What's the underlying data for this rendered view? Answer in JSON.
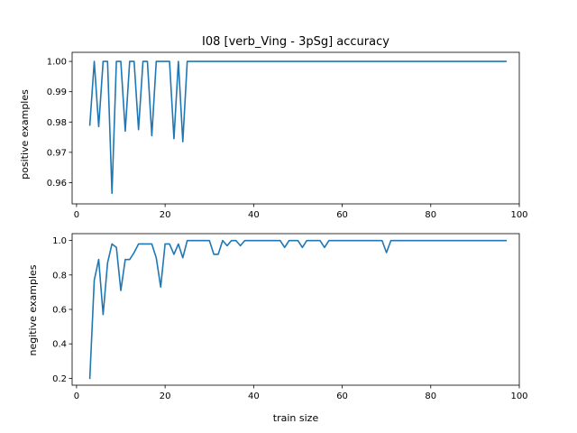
{
  "chart_data": [
    {
      "type": "line",
      "title": "I08 [verb_Ving - 3pSg] accuracy",
      "xlabel": "",
      "ylabel": "positive examples",
      "xlim": [
        -1,
        100
      ],
      "ylim": [
        0.953,
        1.003
      ],
      "xticks": [
        0,
        20,
        40,
        60,
        80,
        100
      ],
      "yticks": [
        0.96,
        0.97,
        0.98,
        0.99,
        1.0
      ],
      "ytick_labels": [
        "0.96",
        "0.97",
        "0.98",
        "0.99",
        "1.00"
      ],
      "grid": false,
      "color": "#1f77b4",
      "series": [
        {
          "x": [
            3,
            4,
            5,
            6,
            7,
            8,
            9,
            10,
            11,
            12,
            13,
            14,
            15,
            16,
            17,
            18,
            19,
            20,
            21,
            22,
            23,
            24,
            25,
            26,
            97
          ],
          "y": [
            0.979,
            1.0,
            0.9785,
            1.0,
            1.0,
            0.9565,
            1.0,
            1.0,
            0.977,
            1.0,
            1.0,
            0.9775,
            1.0,
            1.0,
            0.9755,
            1.0,
            1.0,
            1.0,
            1.0,
            0.9745,
            1.0,
            0.9735,
            1.0,
            1.0,
            1.0
          ]
        }
      ]
    },
    {
      "type": "line",
      "title": "",
      "xlabel": "train size",
      "ylabel": "negitive examples",
      "xlim": [
        -1,
        100
      ],
      "ylim": [
        0.16,
        1.04
      ],
      "xticks": [
        0,
        20,
        40,
        60,
        80,
        100
      ],
      "yticks": [
        0.2,
        0.4,
        0.6,
        0.8,
        1.0
      ],
      "ytick_labels": [
        "0.2",
        "0.4",
        "0.6",
        "0.8",
        "1.0"
      ],
      "grid": false,
      "color": "#1f77b4",
      "series": [
        {
          "x": [
            3,
            4,
            5,
            6,
            7,
            8,
            9,
            10,
            11,
            12,
            13,
            14,
            15,
            16,
            17,
            18,
            19,
            20,
            21,
            22,
            23,
            24,
            25,
            26,
            27,
            28,
            29,
            30,
            31,
            32,
            33,
            34,
            35,
            36,
            37,
            38,
            39,
            40,
            41,
            42,
            43,
            44,
            45,
            46,
            47,
            48,
            49,
            50,
            51,
            52,
            53,
            54,
            55,
            56,
            57,
            58,
            69,
            70,
            71,
            97
          ],
          "y": [
            0.2,
            0.77,
            0.89,
            0.57,
            0.87,
            0.98,
            0.96,
            0.71,
            0.89,
            0.89,
            0.93,
            0.98,
            0.98,
            0.98,
            0.98,
            0.9,
            0.73,
            0.98,
            0.98,
            0.92,
            0.98,
            0.9,
            1.0,
            1.0,
            1.0,
            1.0,
            1.0,
            1.0,
            0.92,
            0.92,
            1.0,
            0.97,
            1.0,
            1.0,
            0.97,
            1.0,
            1.0,
            1.0,
            1.0,
            1.0,
            1.0,
            1.0,
            1.0,
            1.0,
            0.96,
            1.0,
            1.0,
            1.0,
            0.96,
            1.0,
            1.0,
            1.0,
            1.0,
            0.96,
            1.0,
            1.0,
            1.0,
            0.93,
            1.0,
            1.0
          ]
        }
      ]
    }
  ]
}
